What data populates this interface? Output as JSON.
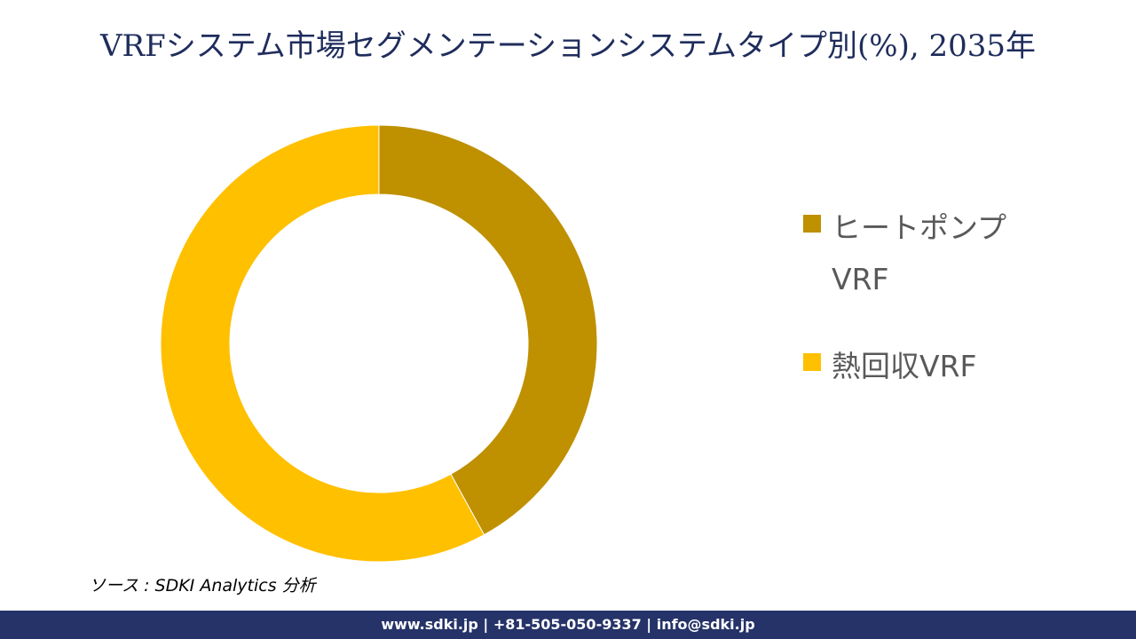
{
  "chart_data": {
    "type": "donut",
    "title": "VRFシステム市場セグメンテーションシステムタイプ別(%), 2035年",
    "categories": [
      "ヒートポンプVRF",
      "熱回収VRF"
    ],
    "values": [
      42,
      58
    ],
    "colors": [
      "#bf9000",
      "#ffc000"
    ]
  },
  "source": "ソース : SDKI Analytics 分析",
  "footer": "www.sdki.jp | +81-505-050-9337 | info@sdki.jp"
}
